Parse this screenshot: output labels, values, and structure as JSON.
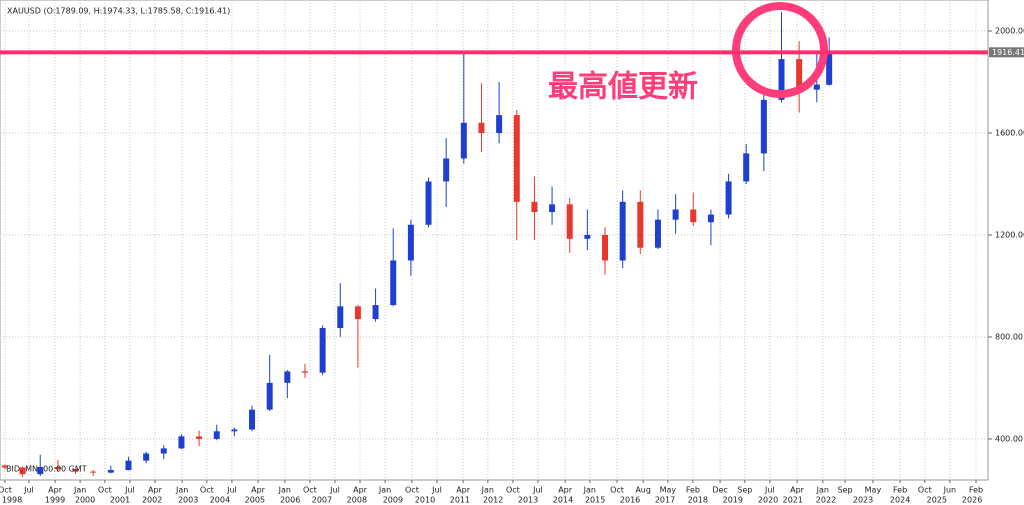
{
  "chart_data": {
    "type": "candlestick",
    "title": "XAUUSD (O:1789.09, H:1974.33, L:1785.58, C:1916.41)",
    "footer": "BID, MN, 00:00 GMT",
    "annotation": "最高値更新",
    "up_color": "#1f3fd0",
    "down_color": "#e8372c",
    "x": [
      1998.75,
      1999.25,
      1999.75,
      2000.25,
      2000.75,
      2001.25,
      2001.75,
      2002.25,
      2002.75,
      2003.25,
      2003.75,
      2004.25,
      2004.75,
      2005.25,
      2005.75,
      2006.25,
      2006.75,
      2007.25,
      2007.75,
      2008.25,
      2008.75,
      2009.25,
      2009.75,
      2010.25,
      2010.75,
      2011.25,
      2011.75,
      2012.25,
      2012.75,
      2013.25,
      2013.75,
      2014.25,
      2014.75,
      2015.25,
      2015.75,
      2016.25,
      2016.75,
      2017.25,
      2017.75,
      2018.25,
      2018.75,
      2019.25,
      2019.75,
      2020.25,
      2020.75,
      2021.25,
      2021.75,
      2022.1
    ],
    "open": [
      296,
      288,
      262,
      290,
      282,
      272,
      268,
      278,
      315,
      343,
      363,
      410,
      400,
      430,
      437,
      515,
      620,
      665,
      660,
      835,
      920,
      870,
      925,
      1100,
      1240,
      1410,
      1500,
      1640,
      1600,
      1670,
      1330,
      1290,
      1320,
      1185,
      1200,
      1100,
      1330,
      1150,
      1260,
      1300,
      1250,
      1280,
      1410,
      1520,
      1730,
      1890,
      1770,
      1789.09
    ],
    "high": [
      300,
      292,
      338,
      317,
      282,
      278,
      295,
      330,
      350,
      375,
      418,
      432,
      456,
      445,
      530,
      730,
      670,
      695,
      845,
      1011,
      925,
      990,
      1226,
      1260,
      1425,
      1580,
      1921,
      1795,
      1800,
      1690,
      1430,
      1390,
      1345,
      1300,
      1230,
      1375,
      1375,
      1300,
      1360,
      1366,
      1300,
      1440,
      1557,
      1765,
      2075,
      1960,
      1915,
      1974.33
    ],
    "low": [
      280,
      252,
      255,
      270,
      263,
      255,
      265,
      277,
      305,
      320,
      360,
      372,
      395,
      411,
      430,
      510,
      560,
      640,
      650,
      800,
      680,
      860,
      920,
      1040,
      1230,
      1310,
      1480,
      1525,
      1560,
      1180,
      1180,
      1240,
      1130,
      1140,
      1045,
      1070,
      1125,
      1145,
      1205,
      1235,
      1160,
      1265,
      1400,
      1450,
      1720,
      1680,
      1720,
      1785.58
    ],
    "close": [
      288,
      262,
      290,
      282,
      272,
      268,
      278,
      315,
      343,
      363,
      410,
      400,
      430,
      437,
      515,
      620,
      665,
      660,
      835,
      920,
      870,
      925,
      1100,
      1240,
      1410,
      1500,
      1640,
      1600,
      1670,
      1330,
      1290,
      1320,
      1185,
      1200,
      1100,
      1330,
      1150,
      1260,
      1300,
      1250,
      1280,
      1410,
      1520,
      1730,
      1890,
      1770,
      1790,
      1916.41
    ],
    "hline": {
      "value": 1916.41,
      "color": "#ff2d6e"
    },
    "ylim": [
      239,
      2102
    ],
    "yticks": [
      {
        "value": 400,
        "label": "400.00"
      },
      {
        "value": 800,
        "label": "800.00"
      },
      {
        "value": 1200,
        "label": "1200.00"
      },
      {
        "value": 1600,
        "label": "1600.00"
      },
      {
        "value": 2000,
        "label": "2000.00"
      }
    ],
    "xlim": [
      1998.61,
      2026.6
    ],
    "xticks": [
      {
        "value": 1998.75,
        "label": "Oct"
      },
      {
        "value": 1999.43,
        "label": "Jul"
      },
      {
        "value": 2000.17,
        "label": "Apr"
      },
      {
        "value": 2000.88,
        "label": "Jan"
      },
      {
        "value": 2001.58,
        "label": "Oct"
      },
      {
        "value": 2002.29,
        "label": "Jul"
      },
      {
        "value": 2003.0,
        "label": "Apr"
      },
      {
        "value": 2003.77,
        "label": "Jan"
      },
      {
        "value": 2004.47,
        "label": "Oct"
      },
      {
        "value": 2005.18,
        "label": "Jul"
      },
      {
        "value": 2005.92,
        "label": "Apr"
      },
      {
        "value": 2006.68,
        "label": "Jan"
      },
      {
        "value": 2007.39,
        "label": "Oct"
      },
      {
        "value": 2008.1,
        "label": "Jul"
      },
      {
        "value": 2008.81,
        "label": "Apr"
      },
      {
        "value": 2009.52,
        "label": "Jan"
      },
      {
        "value": 2010.28,
        "label": "Oct"
      },
      {
        "value": 2010.99,
        "label": "Jul"
      },
      {
        "value": 2011.73,
        "label": "Apr"
      },
      {
        "value": 2012.43,
        "label": "Jan"
      },
      {
        "value": 2013.14,
        "label": "Oct"
      },
      {
        "value": 2013.85,
        "label": "Jul"
      },
      {
        "value": 2014.62,
        "label": "Apr"
      },
      {
        "value": 2015.32,
        "label": "Jan"
      },
      {
        "value": 2016.09,
        "label": "Oct"
      },
      {
        "value": 2016.83,
        "label": "Aug"
      },
      {
        "value": 2017.53,
        "label": "May"
      },
      {
        "value": 2018.24,
        "label": "Feb"
      },
      {
        "value": 2019.01,
        "label": "Dec"
      },
      {
        "value": 2019.71,
        "label": "Sep"
      },
      {
        "value": 2020.42,
        "label": "Jul"
      },
      {
        "value": 2021.19,
        "label": "Apr"
      },
      {
        "value": 2021.92,
        "label": "Jan"
      },
      {
        "value": 2022.55,
        "label": "Sep"
      },
      {
        "value": 2023.34,
        "label": "May"
      },
      {
        "value": 2024.11,
        "label": "Feb"
      },
      {
        "value": 2024.81,
        "label": "Oct"
      },
      {
        "value": 2025.52,
        "label": "Jun"
      },
      {
        "value": 2026.26,
        "label": "Feb"
      }
    ],
    "x_year_labels": [
      {
        "value": 1998.95,
        "label": "1998"
      },
      {
        "value": 2000.17,
        "label": "1999"
      },
      {
        "value": 2001.02,
        "label": "2000"
      },
      {
        "value": 2002.01,
        "label": "2001"
      },
      {
        "value": 2002.92,
        "label": "2002"
      },
      {
        "value": 2003.94,
        "label": "2003"
      },
      {
        "value": 2004.84,
        "label": "2004"
      },
      {
        "value": 2005.83,
        "label": "2005"
      },
      {
        "value": 2006.83,
        "label": "2006"
      },
      {
        "value": 2007.73,
        "label": "2007"
      },
      {
        "value": 2008.72,
        "label": "2008"
      },
      {
        "value": 2009.74,
        "label": "2009"
      },
      {
        "value": 2010.65,
        "label": "2010"
      },
      {
        "value": 2011.64,
        "label": "2011"
      },
      {
        "value": 2012.58,
        "label": "2012"
      },
      {
        "value": 2013.57,
        "label": "2013"
      },
      {
        "value": 2014.56,
        "label": "2014"
      },
      {
        "value": 2015.47,
        "label": "2015"
      },
      {
        "value": 2016.46,
        "label": "2016"
      },
      {
        "value": 2017.45,
        "label": "2017"
      },
      {
        "value": 2018.38,
        "label": "2018"
      },
      {
        "value": 2019.37,
        "label": "2019"
      },
      {
        "value": 2020.37,
        "label": "2020"
      },
      {
        "value": 2021.07,
        "label": "2021"
      },
      {
        "value": 2022.01,
        "label": "2022"
      },
      {
        "value": 2023.06,
        "label": "2023"
      },
      {
        "value": 2024.11,
        "label": "2024"
      },
      {
        "value": 2025.15,
        "label": "2025"
      },
      {
        "value": 2026.15,
        "label": "2026"
      }
    ],
    "grid": true
  }
}
